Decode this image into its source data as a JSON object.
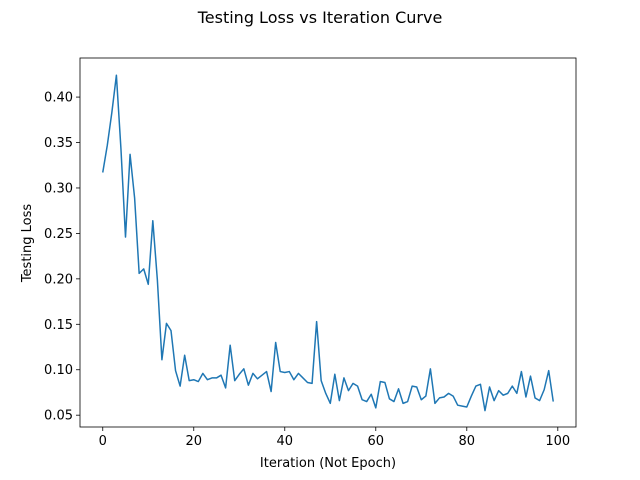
{
  "chart_data": {
    "type": "line",
    "title": "Testing Loss vs Iteration Curve",
    "xlabel": "Iteration (Not Epoch)",
    "ylabel": "Testing Loss",
    "xlim": [
      -5,
      104
    ],
    "ylim": [
      0.037,
      0.443
    ],
    "xticks": [
      0,
      20,
      40,
      60,
      80,
      100
    ],
    "yticks": [
      0.05,
      0.1,
      0.15,
      0.2,
      0.25,
      0.3,
      0.35,
      0.4
    ],
    "ytick_labels": [
      "0.05",
      "0.10",
      "0.15",
      "0.20",
      "0.25",
      "0.30",
      "0.35",
      "0.40"
    ],
    "xtick_labels": [
      "0",
      "20",
      "40",
      "60",
      "80",
      "100"
    ],
    "grid": false,
    "series": [
      {
        "color": "#1f77b4",
        "x": [
          0,
          1,
          2,
          3,
          4,
          5,
          6,
          7,
          8,
          9,
          10,
          11,
          12,
          13,
          14,
          15,
          16,
          17,
          18,
          19,
          20,
          21,
          22,
          23,
          24,
          25,
          26,
          27,
          28,
          29,
          30,
          31,
          32,
          33,
          34,
          35,
          36,
          37,
          38,
          39,
          40,
          41,
          42,
          43,
          44,
          45,
          46,
          47,
          48,
          49,
          50,
          51,
          52,
          53,
          54,
          55,
          56,
          57,
          58,
          59,
          60,
          61,
          62,
          63,
          64,
          65,
          66,
          67,
          68,
          69,
          70,
          71,
          72,
          73,
          74,
          75,
          76,
          77,
          78,
          79,
          80,
          81,
          82,
          83,
          84,
          85,
          86,
          87,
          88,
          89,
          90,
          91,
          92,
          93,
          94,
          95,
          96,
          97,
          98,
          99
        ],
        "y": [
          0.317,
          0.347,
          0.383,
          0.424,
          0.343,
          0.246,
          0.337,
          0.289,
          0.206,
          0.211,
          0.194,
          0.264,
          0.199,
          0.111,
          0.151,
          0.143,
          0.099,
          0.082,
          0.116,
          0.088,
          0.089,
          0.087,
          0.096,
          0.089,
          0.091,
          0.091,
          0.094,
          0.08,
          0.127,
          0.088,
          0.095,
          0.101,
          0.083,
          0.096,
          0.09,
          0.094,
          0.098,
          0.076,
          0.13,
          0.098,
          0.097,
          0.098,
          0.089,
          0.096,
          0.091,
          0.086,
          0.085,
          0.153,
          0.088,
          0.074,
          0.063,
          0.095,
          0.066,
          0.091,
          0.077,
          0.085,
          0.082,
          0.067,
          0.065,
          0.073,
          0.058,
          0.087,
          0.086,
          0.068,
          0.065,
          0.079,
          0.063,
          0.065,
          0.082,
          0.081,
          0.067,
          0.071,
          0.101,
          0.063,
          0.069,
          0.07,
          0.074,
          0.071,
          0.061,
          0.06,
          0.059,
          0.071,
          0.082,
          0.084,
          0.055,
          0.081,
          0.066,
          0.077,
          0.072,
          0.074,
          0.082,
          0.074,
          0.098,
          0.07,
          0.093,
          0.069,
          0.066,
          0.078,
          0.099,
          0.065
        ]
      }
    ]
  }
}
